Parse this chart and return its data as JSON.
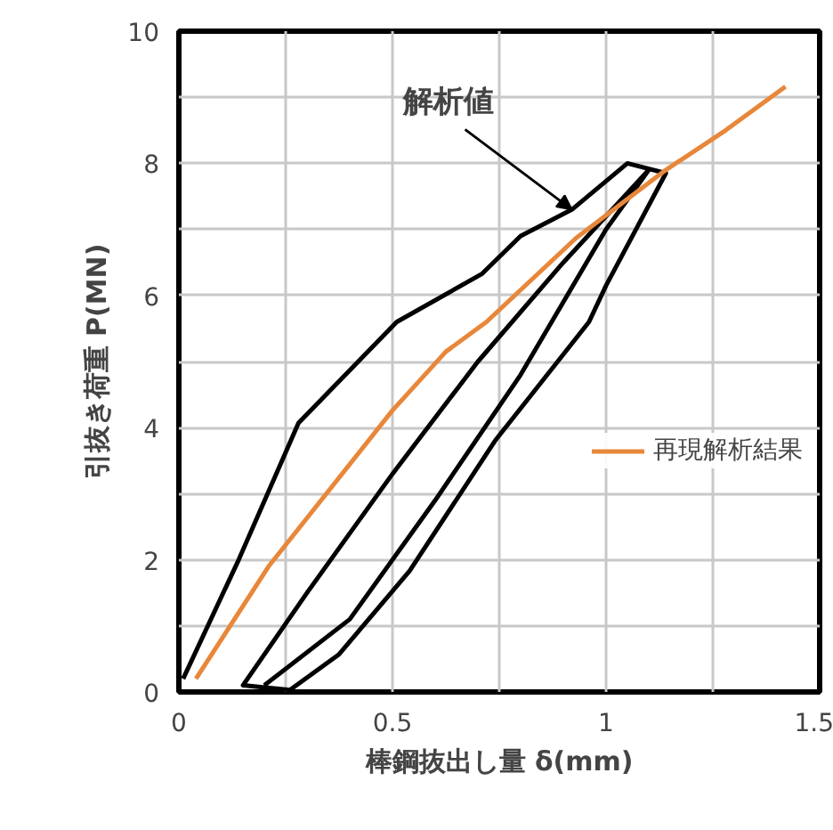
{
  "chart_data": {
    "type": "line",
    "xlabel": "棒鋼抜出し量 δ(mm)",
    "ylabel": "引抜き荷重 P(MN)",
    "xlim": [
      0,
      1.5
    ],
    "ylim": [
      0,
      10
    ],
    "xticks": [
      0,
      {
        "value": 0.25,
        "label": null
      },
      0.5,
      {
        "value": 0.75,
        "label": null
      },
      1,
      {
        "value": 1.25,
        "label": null
      },
      1.5
    ],
    "yticks": [
      0,
      {
        "value": 1,
        "label": null
      },
      2,
      {
        "value": 3,
        "label": null
      },
      4,
      {
        "value": 5,
        "label": null
      },
      6,
      {
        "value": 7,
        "label": null
      },
      8,
      {
        "value": 9,
        "label": null
      },
      10
    ],
    "grid": true,
    "legend": "right",
    "annotations": [
      {
        "text": "解析値",
        "x": 0.92,
        "y": 7.3
      }
    ],
    "series": [
      {
        "color": "#000000",
        "x": [
          0.01,
          0.14,
          0.28,
          0.51,
          0.71,
          0.8,
          0.92,
          1.05,
          1.14,
          1.0,
          0.96,
          0.74,
          0.54,
          0.375,
          0.26,
          0.15,
          0.3,
          0.5,
          0.7,
          0.9,
          1.1,
          1.0,
          0.8,
          0.6,
          0.4,
          0.2
        ],
        "values": [
          0.2,
          2.0,
          4.07,
          5.6,
          6.33,
          6.9,
          7.3,
          8.0,
          7.85,
          6.15,
          5.6,
          3.8,
          1.83,
          0.57,
          0.03,
          0.1,
          1.5,
          3.3,
          5.0,
          6.5,
          7.9,
          7.0,
          4.8,
          2.9,
          1.1,
          0.1
        ]
      },
      {
        "name": "再現解析結果",
        "color": "#e8873a",
        "x": [
          0.04,
          0.21,
          0.5,
          0.625,
          0.72,
          0.93,
          1.14,
          1.28,
          1.42
        ],
        "values": [
          0.2,
          1.9,
          4.26,
          5.15,
          5.6,
          6.87,
          7.9,
          8.5,
          9.16
        ]
      }
    ]
  }
}
